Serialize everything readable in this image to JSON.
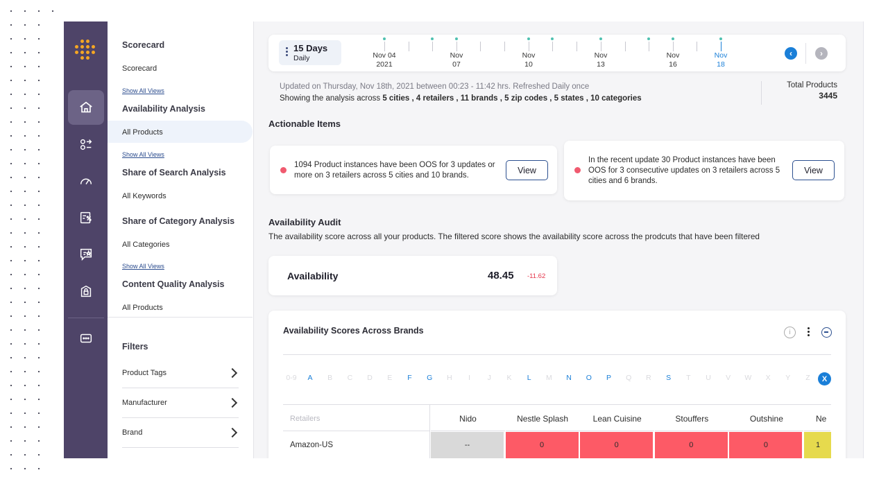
{
  "sidebar_nav": {
    "scorecard_heading": "Scorecard",
    "scorecard_item": "Scorecard",
    "show_all_1": "Show All Views",
    "availability_heading": "Availability Analysis",
    "availability_item": "All Products",
    "show_all_2": "Show All Views",
    "sos_heading": "Share of Search Analysis",
    "sos_item": "All Keywords",
    "soc_heading": "Share of Category Analysis",
    "soc_item": "All Categories",
    "show_all_3": "Show All Views",
    "cq_heading": "Content Quality Analysis",
    "cq_item": "All Products",
    "filters_heading": "Filters",
    "filters": [
      "Product Tags",
      "Manufacturer",
      "Brand"
    ]
  },
  "timeline": {
    "range_title": "15 Days",
    "range_sub": "Daily",
    "dates": [
      {
        "m": "Nov 04",
        "d": "2021"
      },
      {
        "m": "Nov",
        "d": "07"
      },
      {
        "m": "Nov",
        "d": "10"
      },
      {
        "m": "Nov",
        "d": "13"
      },
      {
        "m": "Nov",
        "d": "16"
      },
      {
        "m": "Nov",
        "d": "18"
      }
    ],
    "prev": "‹",
    "next": "›"
  },
  "summary": {
    "updated": "Updated on Thursday, Nov 18th, 2021 between 00:23 - 11:42 hrs. Refreshed Daily once",
    "showing_prefix": "Showing the analysis  across ",
    "showing_bold": "5 cities , 4 retailers , 11 brands , 5 zip codes , 5 states , 10 categories",
    "total_label": "Total Products",
    "total_value": "3445"
  },
  "actionable": {
    "title": "Actionable Items",
    "items": [
      {
        "text": "1094 Product instances have been OOS for 3 updates or more on 3 retailers across 5 cities and 10 brands.",
        "button": "View"
      },
      {
        "text": "In the recent update 30 Product instances have been OOS for 3 consecutive updates on 3 retailers across 5 cities and 6 brands.",
        "button": "View"
      }
    ]
  },
  "audit": {
    "title": "Availability Audit",
    "desc": "The availability score across all your products. The filtered score shows the availability score across the prodcuts that have been filtered",
    "metric_label": "Availability",
    "metric_value": "48.45",
    "metric_delta": "-11.62"
  },
  "brands_card": {
    "title": "Availability Scores Across Brands",
    "info": "i",
    "letters": [
      "0-9",
      "A",
      "B",
      "C",
      "D",
      "E",
      "F",
      "G",
      "H",
      "I",
      "J",
      "K",
      "L",
      "M",
      "N",
      "O",
      "P",
      "Q",
      "R",
      "S",
      "T",
      "U",
      "V",
      "W",
      "X",
      "Y",
      "Z"
    ],
    "active_letters": [
      "A",
      "F",
      "G",
      "L",
      "N",
      "O",
      "P",
      "S"
    ],
    "clear": "X",
    "row_header": "Retailers",
    "columns": [
      "Nido",
      "Nestle Splash",
      "Lean Cuisine",
      "Stouffers",
      "Outshine",
      "Ne"
    ],
    "rows": [
      {
        "retailer": "Amazon-US",
        "cells": [
          "--",
          "0",
          "0",
          "0",
          "0",
          "1"
        ]
      }
    ],
    "cell_colors": [
      "#d9d9d9",
      "#fd5a66",
      "#fd5a66",
      "#fd5a66",
      "#fd5a66",
      "#e6da4d"
    ]
  },
  "colors": {
    "rail": "#4e4468",
    "accent": "#1a7fd8",
    "alert": "#f05a6f",
    "logo": "#f5a623"
  }
}
